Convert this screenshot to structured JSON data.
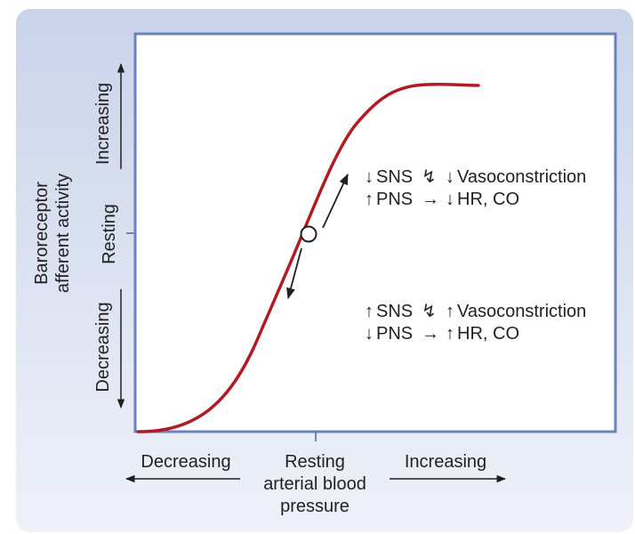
{
  "colors": {
    "panel_top": "#c9d3ea",
    "panel_bottom": "#eef1f8",
    "frame": "#6b82bd",
    "curve": "#b01c24",
    "ink": "#231f20"
  },
  "y_axis": {
    "title_line1": "Baroreceptor",
    "title_line2": "afferent activity",
    "increasing": "Increasing",
    "resting": "Resting",
    "decreasing": "Decreasing"
  },
  "x_axis": {
    "decreasing": "Decreasing",
    "resting_line1": "Resting",
    "resting_line2": "arterial blood",
    "resting_line3": "pressure",
    "increasing": "Increasing"
  },
  "upper_annotation": {
    "line1_left": "SNS",
    "line1_right": "Vasoconstriction",
    "line2_left": "PNS",
    "line2_right": "HR, CO"
  },
  "lower_annotation": {
    "line1_left": "SNS",
    "line1_right": "Vasoconstriction",
    "line2_left": "PNS",
    "line2_right": "HR, CO"
  },
  "glyphs": {
    "up": "↑",
    "down": "↓",
    "right": "→",
    "zigzag": "↯"
  }
}
